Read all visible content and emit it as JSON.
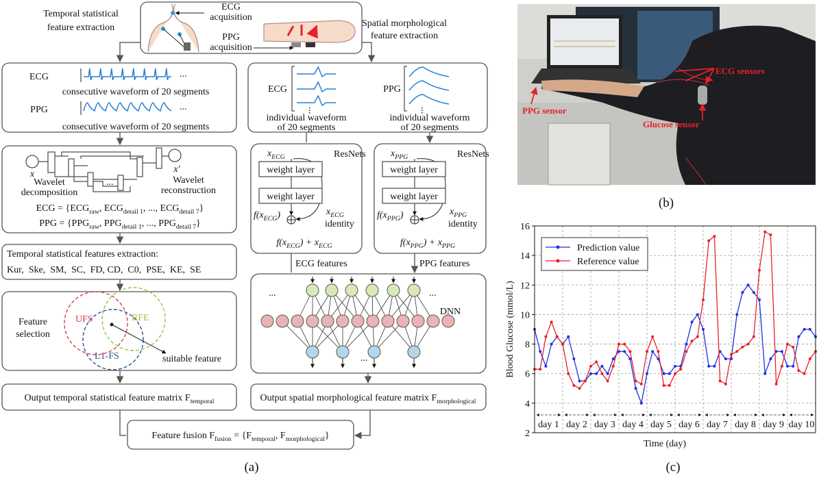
{
  "diagram": {
    "caption": "(a)",
    "acquisition": {
      "ecg": [
        "ECG",
        "acquisition"
      ],
      "ppg": [
        "PPG",
        "acquisition"
      ]
    },
    "temporal_branch_title": [
      "Temporal statistical",
      "feature extraction"
    ],
    "spatial_branch_title": [
      "Spatial morphological",
      "feature extraction"
    ],
    "ellipsis": "...",
    "consecutive": {
      "ecg_label": "ECG",
      "ecg_caption": "consecutive waveform of 20 segments",
      "ppg_label": "PPG",
      "ppg_caption": "consecutive waveform of 20 segments"
    },
    "individual": {
      "ecg_label": "ECG",
      "ecg_caption": [
        "individual waveform",
        "of 20 segments"
      ],
      "ppg_label": "PPG",
      "ppg_caption": [
        "individual waveform",
        "of 20 segments"
      ]
    },
    "wavelet": {
      "input": "x",
      "output": "x'",
      "decomposition": [
        "Wavelet",
        "decomposition"
      ],
      "reconstruction": [
        "Wavelet",
        "reconstruction"
      ],
      "ecg_formula": [
        {
          "text": "ECG = {ECG"
        },
        {
          "sub": "raw"
        },
        {
          "text": ", ECG"
        },
        {
          "sub": "detail 1"
        },
        {
          "text": ", ..., ECG"
        },
        {
          "sub": "detail 7"
        },
        {
          "text": "}"
        }
      ],
      "ppg_formula": [
        {
          "text": "PPG = {PPG"
        },
        {
          "sub": "raw"
        },
        {
          "text": ", PPG"
        },
        {
          "sub": "detail 1"
        },
        {
          "text": ", ..., PPG"
        },
        {
          "sub": "detail 7"
        },
        {
          "text": "}"
        }
      ]
    },
    "statistical_features": {
      "title": "Temporal statistical features extraction:",
      "list": "Kur,  Ske,  SM,  SC,  FD, CD,  C0,  PSE,  KE,  SE"
    },
    "feature_selection": {
      "label": [
        "Feature",
        "selection"
      ],
      "methods": [
        "UFS",
        "RFE",
        "L1-FS"
      ],
      "result": "suitable feature"
    },
    "temporal_output": [
      {
        "text": "Output temporal statistical feature matrix F"
      },
      {
        "sub": "temporal"
      }
    ],
    "resnets": [
      {
        "input": [
          {
            "text": "x"
          },
          {
            "sub": "ECG"
          }
        ],
        "title": "ResNets",
        "layers": [
          "weight layer",
          "weight layer"
        ],
        "residual": [
          {
            "text": "f(x"
          },
          {
            "sub": "ECG"
          },
          {
            "text": ")"
          }
        ],
        "identity_symbol": [
          {
            "text": "x"
          },
          {
            "sub": "ECG"
          }
        ],
        "identity_label": "identity",
        "output": [
          {
            "text": "f(x"
          },
          {
            "sub": "ECG"
          },
          {
            "text": ") + x"
          },
          {
            "sub": "ECG"
          }
        ]
      },
      {
        "input": [
          {
            "text": "x"
          },
          {
            "sub": "PPG"
          }
        ],
        "title": "ResNets",
        "layers": [
          "weight layer",
          "weight layer"
        ],
        "residual": [
          {
            "text": "f(x"
          },
          {
            "sub": "PPG"
          },
          {
            "text": ")"
          }
        ],
        "identity_symbol": [
          {
            "text": "x"
          },
          {
            "sub": "PPG"
          }
        ],
        "identity_label": "identity",
        "output": [
          {
            "text": "f(x"
          },
          {
            "sub": "PPG"
          },
          {
            "text": ") + x"
          },
          {
            "sub": "PPG"
          }
        ]
      }
    ],
    "features": [
      "ECG features",
      "PPG features"
    ],
    "dnn": "DNN",
    "spatial_output": [
      {
        "text": "Output spatial morphological feature matrix F"
      },
      {
        "sub": "morphological"
      }
    ],
    "fusion": [
      {
        "text": "Feature fusion F"
      },
      {
        "sub": "fusion"
      },
      {
        "text": " = {F"
      },
      {
        "sub": "temporal"
      },
      {
        "text": ", F"
      },
      {
        "sub": "morphological"
      },
      {
        "text": "}"
      }
    ]
  },
  "photo": {
    "caption": "(b)",
    "labels": {
      "ecg": "ECG sensors",
      "ppg": "PPG sensor",
      "glucose": "Glucose sensor"
    }
  },
  "chart_data": {
    "type": "line",
    "caption": "(c)",
    "x_label": "Time (day)",
    "y_label": "Blood Glucose (mmol/L)",
    "xlim": [
      0,
      10
    ],
    "ylim": [
      2,
      16
    ],
    "yticks": [
      2,
      4,
      6,
      8,
      10,
      12,
      14,
      16
    ],
    "grid": true,
    "legend": "upper left",
    "day_labels": [
      "day 1",
      "day 2",
      "day 3",
      "day 4",
      "day 5",
      "day 6",
      "day 7",
      "day 8",
      "day 9",
      "day 10"
    ],
    "x": [
      0,
      0.2,
      0.4,
      0.6,
      0.8,
      1,
      1.2,
      1.4,
      1.6,
      1.8,
      2,
      2.2,
      2.4,
      2.6,
      2.8,
      3,
      3.2,
      3.4,
      3.6,
      3.8,
      4,
      4.2,
      4.4,
      4.6,
      4.8,
      5,
      5.2,
      5.4,
      5.6,
      5.8,
      6,
      6.2,
      6.4,
      6.6,
      6.8,
      7,
      7.2,
      7.4,
      7.6,
      7.8,
      8,
      8.2,
      8.4,
      8.6,
      8.8,
      9,
      9.2,
      9.4,
      9.6,
      9.8,
      10
    ],
    "series": [
      {
        "name": "Prediction value",
        "color": "#1f2fe0",
        "values": [
          9,
          7.5,
          6.5,
          8,
          8.5,
          8,
          8.5,
          7,
          5.5,
          5.5,
          6,
          6,
          6.5,
          6,
          7,
          7.5,
          7.5,
          7,
          5,
          4,
          6,
          7.5,
          7,
          6,
          6,
          6.5,
          6.5,
          8,
          9.5,
          10,
          9,
          6.5,
          6.5,
          7.5,
          7,
          7,
          10,
          11.5,
          12,
          11.5,
          11,
          6,
          7,
          7.5,
          7.5,
          6.5,
          6.5,
          8.5,
          9,
          9,
          8.5
        ]
      },
      {
        "name": "Reference value",
        "color": "#e8202a",
        "values": [
          6.3,
          6.3,
          8.5,
          9.5,
          8.5,
          8,
          6,
          5.2,
          5,
          5.5,
          6.5,
          6.8,
          6,
          5.5,
          6.5,
          8,
          8,
          7.5,
          5.5,
          5.3,
          7.5,
          8.5,
          7.5,
          5.2,
          5.2,
          6,
          6.3,
          7.5,
          8.2,
          8.5,
          11,
          15,
          15.3,
          5.5,
          5.3,
          7.3,
          7.5,
          7.8,
          8,
          8.5,
          13,
          15.6,
          15.4,
          5.3,
          6.5,
          8,
          7.8,
          6.2,
          6,
          7,
          7.5
        ]
      }
    ]
  }
}
